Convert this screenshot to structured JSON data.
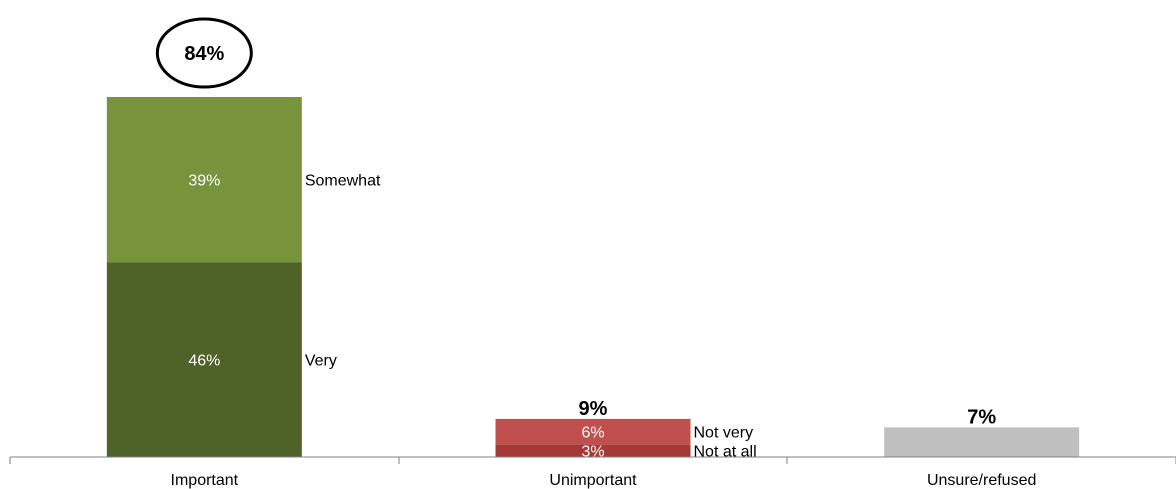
{
  "chart_data": {
    "type": "bar",
    "stacked": true,
    "categories": [
      "Important",
      "Unimportant",
      "Unsure/refused"
    ],
    "bars": [
      {
        "category": "Important",
        "total_label": "84%",
        "total_circled": true,
        "segments": [
          {
            "label": "Very",
            "value": 46,
            "value_label": "46%",
            "color": "#4f6228"
          },
          {
            "label": "Somewhat",
            "value": 39,
            "value_label": "39%",
            "color": "#77933c"
          }
        ]
      },
      {
        "category": "Unimportant",
        "total_label": "9%",
        "total_circled": false,
        "segments": [
          {
            "label": "Not at all",
            "value": 3,
            "value_label": "3%",
            "color": "#a33a37"
          },
          {
            "label": "Not very",
            "value": 6,
            "value_label": "6%",
            "color": "#c0504d"
          }
        ]
      },
      {
        "category": "Unsure/refused",
        "total_label": "7%",
        "total_circled": false,
        "segments": [
          {
            "label": "",
            "value": 7,
            "value_label": "",
            "color": "#bfbfbf"
          }
        ]
      }
    ],
    "ylim": [
      0,
      85
    ],
    "grid": false,
    "legend": "inline"
  }
}
